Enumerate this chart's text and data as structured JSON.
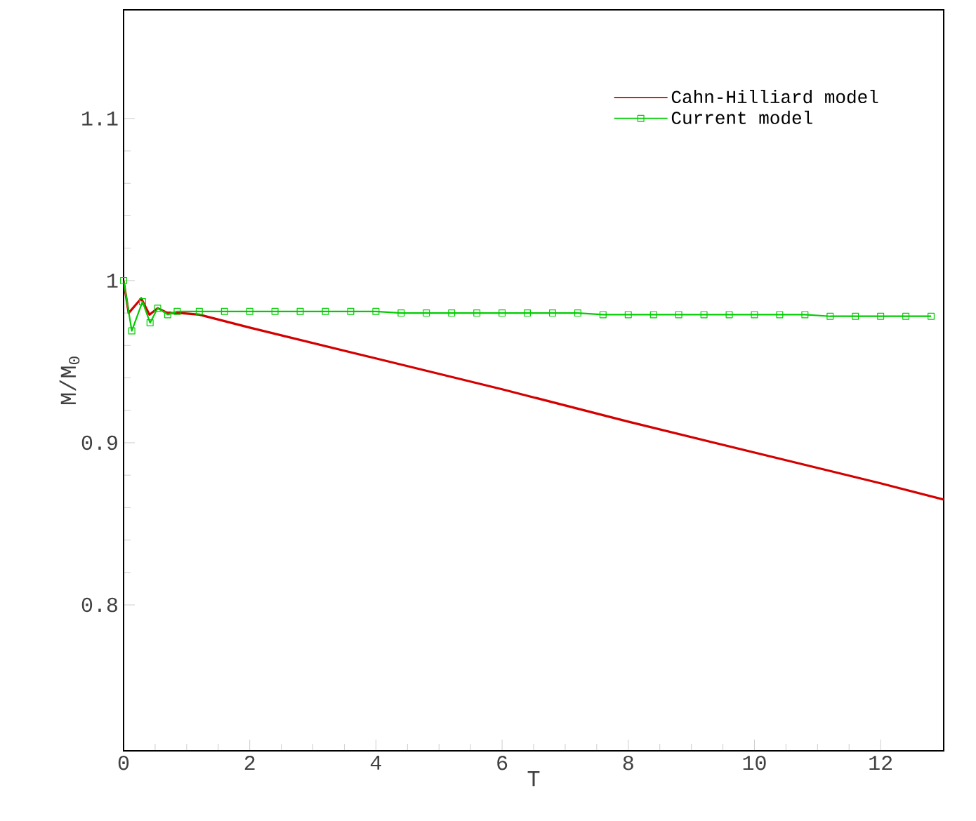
{
  "chart_data": {
    "type": "line",
    "xlabel": "T",
    "ylabel": "M/M$_{0}$",
    "xlim": [
      0,
      13
    ],
    "ylim": [
      0.71,
      1.167
    ],
    "xticks": [
      0,
      2,
      4,
      6,
      8,
      10,
      12
    ],
    "yticks": [
      0.8,
      0.9,
      1,
      1.1
    ],
    "legend": "top right",
    "grid": false,
    "series": [
      {
        "name": "Cahn-Hilliard model",
        "color": "#d40000",
        "marker": "none",
        "x": [
          0,
          0.08,
          0.28,
          0.41,
          0.54,
          0.7,
          0.9,
          1.2,
          2,
          4,
          6,
          8,
          10,
          12,
          13
        ],
        "values": [
          1.0,
          0.98,
          0.989,
          0.979,
          0.983,
          0.98,
          0.98,
          0.979,
          0.971,
          0.952,
          0.933,
          0.913,
          0.894,
          0.875,
          0.865
        ]
      },
      {
        "name": "Current model",
        "color": "#00cc00",
        "marker": "square",
        "x": [
          0,
          0.13,
          0.3,
          0.42,
          0.54,
          0.7,
          0.85,
          1.2,
          1.6,
          2.0,
          2.4,
          2.8,
          3.2,
          3.6,
          4.0,
          4.4,
          4.8,
          5.2,
          5.6,
          6.0,
          6.4,
          6.8,
          7.2,
          7.6,
          8.0,
          8.4,
          8.8,
          9.2,
          9.6,
          10.0,
          10.4,
          10.8,
          11.2,
          11.6,
          12.0,
          12.4,
          12.8
        ],
        "values": [
          1.0,
          0.969,
          0.987,
          0.974,
          0.983,
          0.979,
          0.981,
          0.981,
          0.981,
          0.981,
          0.981,
          0.981,
          0.981,
          0.981,
          0.981,
          0.98,
          0.98,
          0.98,
          0.98,
          0.98,
          0.98,
          0.98,
          0.98,
          0.979,
          0.979,
          0.979,
          0.979,
          0.979,
          0.979,
          0.979,
          0.979,
          0.979,
          0.978,
          0.978,
          0.978,
          0.978,
          0.978
        ]
      }
    ]
  }
}
